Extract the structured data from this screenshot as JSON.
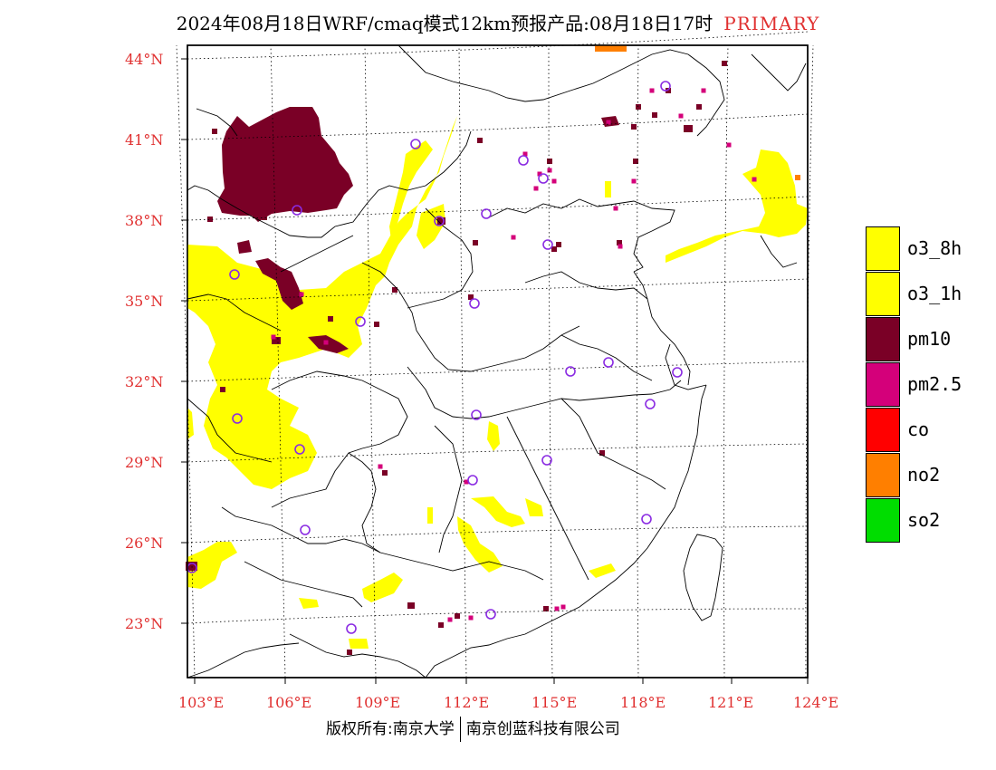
{
  "title": {
    "main": "2024年08月18日WRF/cmaq模式12km预报产品:08月18日17时",
    "tag": "PRIMARY"
  },
  "axes": {
    "lat_labels": [
      "44°N",
      "41°N",
      "38°N",
      "35°N",
      "32°N",
      "29°N",
      "26°N",
      "23°N"
    ],
    "lon_labels": [
      "103°E",
      "106°E",
      "109°E",
      "112°E",
      "115°E",
      "118°E",
      "121°E",
      "124°E"
    ]
  },
  "legend": [
    {
      "label": "o3_8h",
      "color": "#ffff00"
    },
    {
      "label": "o3_1h",
      "color": "#ffff00"
    },
    {
      "label": "pm10",
      "color": "#7a0026"
    },
    {
      "label": "pm2.5",
      "color": "#d4007a"
    },
    {
      "label": "co",
      "color": "#ff0000"
    },
    {
      "label": "no2",
      "color": "#ff7f00"
    },
    {
      "label": "so2",
      "color": "#00dd00"
    }
  ],
  "footer": {
    "left": "版权所有:南京大学",
    "right": "南京创蓝科技有限公司"
  },
  "colors": {
    "axis_label": "#e03030",
    "o3": "#ffff00",
    "pm10": "#7a0026",
    "pm25": "#d4007a",
    "station_marker": "#8a2be2"
  }
}
